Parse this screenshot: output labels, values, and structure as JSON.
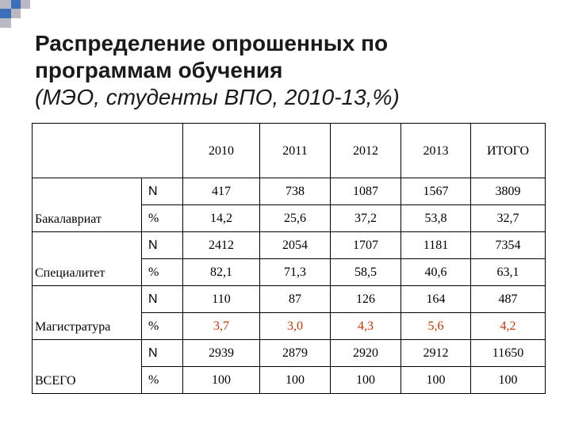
{
  "title": {
    "line1": "Распределение опрошенных по",
    "line2": "программам обучения",
    "line3": "(МЭО, студенты ВПО, 2010-13,%)"
  },
  "table": {
    "columns": [
      "2010",
      "2011",
      "2012",
      "2013",
      "ИТОГО"
    ],
    "groups": [
      {
        "label": "Бакалавриат",
        "n_label": "N",
        "n_values": [
          "417",
          "738",
          "1087",
          "1567",
          "3809"
        ],
        "pct_label": "%",
        "pct_values": [
          "14,2",
          "25,6",
          "37,2",
          "53,8",
          "32,7"
        ],
        "pct_color": "#000000"
      },
      {
        "label": "Специалитет",
        "n_label": "N",
        "n_values": [
          "2412",
          "2054",
          "1707",
          "1181",
          "7354"
        ],
        "pct_label": "%",
        "pct_values": [
          "82,1",
          "71,3",
          "58,5",
          "40,6",
          "63,1"
        ],
        "pct_color": "#000000"
      },
      {
        "label": "Магистратура",
        "n_label": "N",
        "n_values": [
          "110",
          "87",
          "126",
          "164",
          "487"
        ],
        "pct_label": "%",
        "pct_values": [
          "3,7",
          "3,0",
          "4,3",
          "5,6",
          "4,2"
        ],
        "pct_color": "#cc3300"
      },
      {
        "label": "ВСЕГО",
        "n_label": "N",
        "n_values": [
          "2939",
          "2879",
          "2920",
          "2912",
          "11650"
        ],
        "pct_label": "%",
        "pct_values": [
          "100",
          "100",
          "100",
          "100",
          "100"
        ],
        "pct_color": "#000000"
      }
    ]
  },
  "colors": {
    "decor_blue": "#3b6fb6",
    "decor_gray": "#b9b9c4",
    "highlight_red": "#cc3300"
  }
}
